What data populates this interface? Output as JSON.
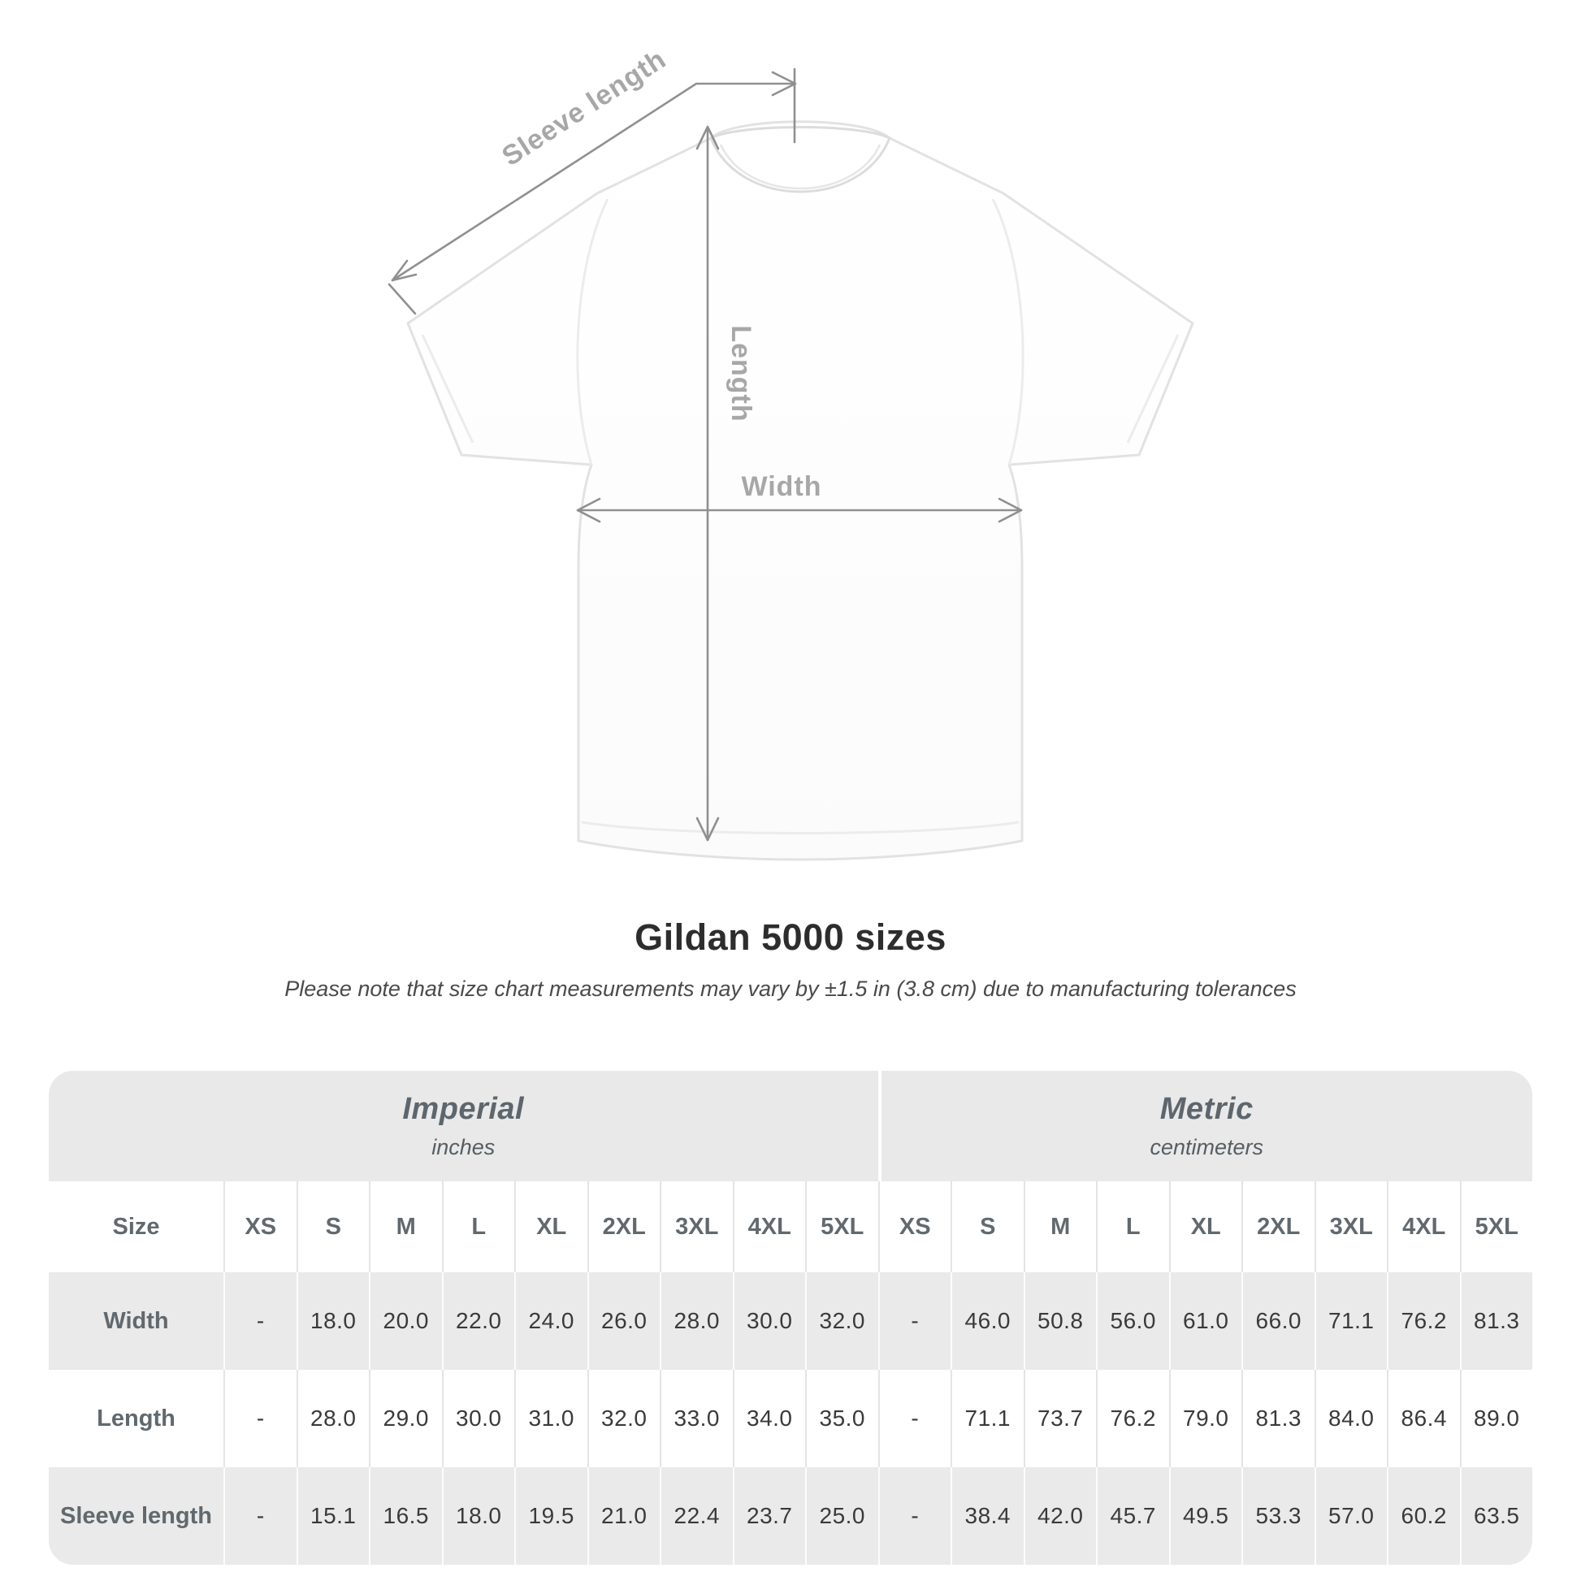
{
  "diagram": {
    "labels": {
      "sleeve_length": "Sleeve length",
      "length": "Length",
      "width": "Width"
    },
    "line_color": "#909090",
    "label_color": "#a7a7a7",
    "shirt_color": "#ffffff"
  },
  "title": "Gildan 5000 sizes",
  "subtitle": "Please note that size chart measurements may vary by ±1.5 in (3.8 cm) due to manufacturing tolerances",
  "size_table": {
    "unit_groups": [
      {
        "name": "Imperial",
        "unit": "inches"
      },
      {
        "name": "Metric",
        "unit": "centimeters"
      }
    ],
    "size_header_label": "Size",
    "column_headers": [
      "XS",
      "S",
      "M",
      "L",
      "XL",
      "2XL",
      "3XL",
      "4XL",
      "5XL",
      "XS",
      "S",
      "M",
      "L",
      "XL",
      "2XL",
      "3XL",
      "4XL",
      "5XL"
    ],
    "rows": [
      {
        "label": "Width",
        "values": [
          "-",
          "18.0",
          "20.0",
          "22.0",
          "24.0",
          "26.0",
          "28.0",
          "30.0",
          "32.0",
          "-",
          "46.0",
          "50.8",
          "56.0",
          "61.0",
          "66.0",
          "71.1",
          "76.2",
          "81.3"
        ]
      },
      {
        "label": "Length",
        "values": [
          "-",
          "28.0",
          "29.0",
          "30.0",
          "31.0",
          "32.0",
          "33.0",
          "34.0",
          "35.0",
          "-",
          "71.1",
          "73.7",
          "76.2",
          "79.0",
          "81.3",
          "84.0",
          "86.4",
          "89.0"
        ]
      },
      {
        "label": "Sleeve length",
        "values": [
          "-",
          "15.1",
          "16.5",
          "18.0",
          "19.5",
          "21.0",
          "22.4",
          "23.7",
          "25.0",
          "-",
          "38.4",
          "42.0",
          "45.7",
          "49.5",
          "53.3",
          "57.0",
          "60.2",
          "63.5"
        ]
      }
    ],
    "colors": {
      "header_bg": "#e9e9e9",
      "row_alt_bg": "#eaeaea",
      "row_bg": "#ffffff"
    }
  },
  "chart_data": {
    "type": "table",
    "title": "Gildan 5000 sizes",
    "note": "Please note that size chart measurements may vary by ±1.5 in (3.8 cm) due to manufacturing tolerances",
    "unit_systems": [
      "Imperial (inches)",
      "Metric (centimeters)"
    ],
    "sizes": [
      "XS",
      "S",
      "M",
      "L",
      "XL",
      "2XL",
      "3XL",
      "4XL",
      "5XL"
    ],
    "imperial": {
      "Width": [
        null,
        18.0,
        20.0,
        22.0,
        24.0,
        26.0,
        28.0,
        30.0,
        32.0
      ],
      "Length": [
        null,
        28.0,
        29.0,
        30.0,
        31.0,
        32.0,
        33.0,
        34.0,
        35.0
      ],
      "Sleeve length": [
        null,
        15.1,
        16.5,
        18.0,
        19.5,
        21.0,
        22.4,
        23.7,
        25.0
      ]
    },
    "metric": {
      "Width": [
        null,
        46.0,
        50.8,
        56.0,
        61.0,
        66.0,
        71.1,
        76.2,
        81.3
      ],
      "Length": [
        null,
        71.1,
        73.7,
        76.2,
        79.0,
        81.3,
        84.0,
        86.4,
        89.0
      ],
      "Sleeve length": [
        null,
        38.4,
        42.0,
        45.7,
        49.5,
        53.3,
        57.0,
        60.2,
        63.5
      ]
    }
  }
}
